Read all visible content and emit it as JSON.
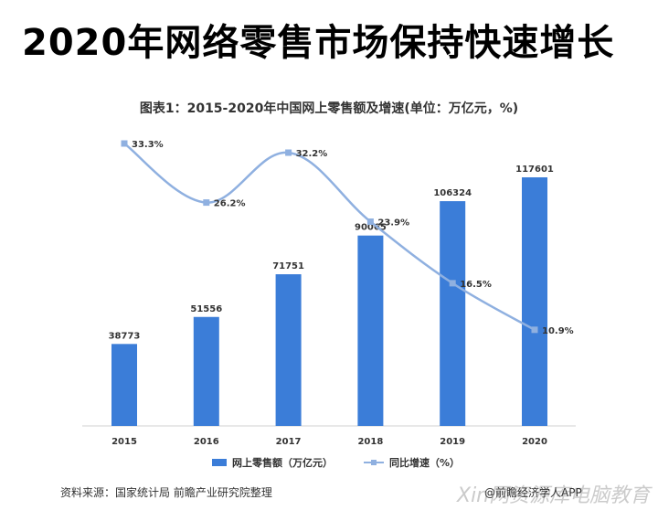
{
  "headline": "2020年网络零售市场保持快速增长",
  "source": "资料来源：国家统计局 前瞻产业研究院整理",
  "credit": "@前瞻经济学人APP",
  "watermark_text": "Xin网资源库电脑教育",
  "colors": {
    "bar": "#3b7dd8",
    "line": "#8fb0e0",
    "text": "#333333"
  },
  "chart_data": {
    "type": "bar",
    "title": "图表1：2015-2020年中国网上零售额及增速(单位：万亿元，%)",
    "categories": [
      "2015",
      "2016",
      "2017",
      "2018",
      "2019",
      "2020"
    ],
    "series": [
      {
        "name": "网上零售额（万亿元）",
        "type": "bar",
        "values": [
          38773,
          51556,
          71751,
          90065,
          106324,
          117601
        ]
      },
      {
        "name": "同比增速（%）",
        "type": "line",
        "values": [
          33.3,
          26.2,
          32.2,
          23.9,
          16.5,
          10.9
        ]
      }
    ],
    "value_labels": {
      "bar": [
        "38773",
        "51556",
        "71751",
        "90065",
        "106324",
        "117601"
      ],
      "line": [
        "33.3%",
        "26.2%",
        "32.2%",
        "23.9%",
        "16.5%",
        "10.9%"
      ]
    },
    "legend": [
      "网上零售额（万亿元）",
      "同比增速（%）"
    ],
    "legend_position": "bottom",
    "grid": false
  }
}
